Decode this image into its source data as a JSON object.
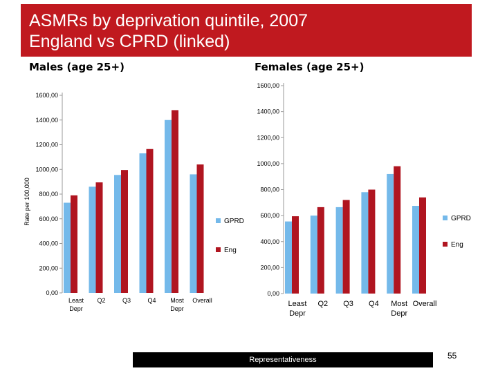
{
  "slide": {
    "title_line1": "ASMRs by deprivation quintile, 2007",
    "title_line2": "England vs CPRD (linked)",
    "footer": "Representativeness",
    "page_number": "55"
  },
  "colors": {
    "title_bg": "#c0191f",
    "gprd": "#74b9ea",
    "eng": "#b01520"
  },
  "chart_data": [
    {
      "type": "bar",
      "title": "Males (age 25+)",
      "ylabel": "Rate per 100,000",
      "xlabel": "",
      "ylim": [
        0,
        1600
      ],
      "yticks": [
        0,
        200,
        400,
        600,
        800,
        1000,
        1200,
        1400,
        1600
      ],
      "ytick_labels": [
        "0,00",
        "200,00",
        "400,00",
        "600,00",
        "800,00",
        "1000,00",
        "1200,00",
        "1400,00",
        "1600,00"
      ],
      "categories": [
        "Least Depr",
        "Q2",
        "Q3",
        "Q4",
        "Most Depr",
        "Overall"
      ],
      "series": [
        {
          "name": "GPRD",
          "values": [
            730,
            860,
            955,
            1130,
            1400,
            960
          ]
        },
        {
          "name": "Eng",
          "values": [
            790,
            895,
            995,
            1165,
            1480,
            1040
          ]
        }
      ],
      "grid": false,
      "legend": "right"
    },
    {
      "type": "bar",
      "title": "Females (age 25+)",
      "ylabel": "",
      "xlabel": "",
      "ylim": [
        0,
        1600
      ],
      "yticks": [
        0,
        200,
        400,
        600,
        800,
        1000,
        1200,
        1400,
        1600
      ],
      "ytick_labels": [
        "0,00",
        "200,00",
        "400,00",
        "600,00",
        "800,00",
        "1000,00",
        "1200,00",
        "1400,00",
        "1600,00"
      ],
      "categories": [
        "Least Depr",
        "Q2",
        "Q3",
        "Q4",
        "Most Depr",
        "Overall"
      ],
      "series": [
        {
          "name": "GPRD",
          "values": [
            555,
            600,
            665,
            780,
            920,
            675
          ]
        },
        {
          "name": "Eng",
          "values": [
            595,
            665,
            720,
            800,
            980,
            740
          ]
        }
      ],
      "grid": false,
      "legend": "right"
    }
  ]
}
